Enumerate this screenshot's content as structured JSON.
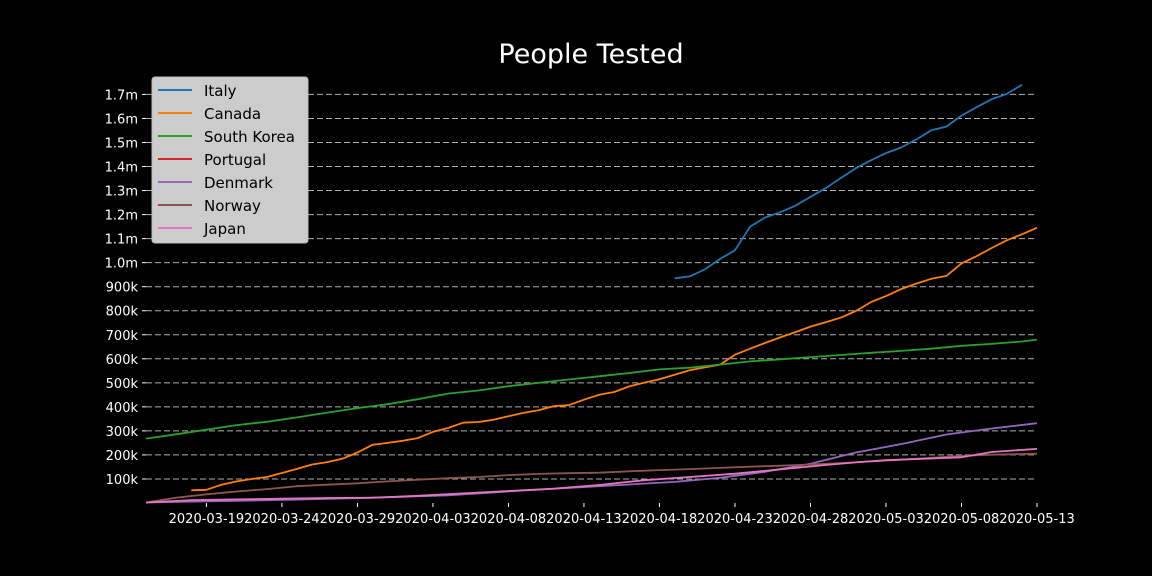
{
  "chart_data": {
    "type": "line",
    "title": "People Tested",
    "xlabel": "",
    "ylabel": "",
    "x_range": [
      "2020-03-15",
      "2020-05-13"
    ],
    "ylim": [
      0,
      1760000
    ],
    "grid": "horizontal dashed",
    "legend_position": "top-left",
    "x_ticks": [
      "2020-03-19",
      "2020-03-24",
      "2020-03-29",
      "2020-04-03",
      "2020-04-08",
      "2020-04-13",
      "2020-04-18",
      "2020-04-23",
      "2020-04-28",
      "2020-05-03",
      "2020-05-08",
      "2020-05-13"
    ],
    "y_ticks": [
      {
        "value": 100000,
        "label": "100k"
      },
      {
        "value": 200000,
        "label": "200k"
      },
      {
        "value": 300000,
        "label": "300k"
      },
      {
        "value": 400000,
        "label": "400k"
      },
      {
        "value": 500000,
        "label": "500k"
      },
      {
        "value": 600000,
        "label": "600k"
      },
      {
        "value": 700000,
        "label": "700k"
      },
      {
        "value": 800000,
        "label": "800k"
      },
      {
        "value": 900000,
        "label": "900k"
      },
      {
        "value": 1000000,
        "label": "1.0m"
      },
      {
        "value": 1100000,
        "label": "1.1m"
      },
      {
        "value": 1200000,
        "label": "1.2m"
      },
      {
        "value": 1300000,
        "label": "1.3m"
      },
      {
        "value": 1400000,
        "label": "1.4m"
      },
      {
        "value": 1500000,
        "label": "1.5m"
      },
      {
        "value": 1600000,
        "label": "1.6m"
      },
      {
        "value": 1700000,
        "label": "1.7m"
      }
    ],
    "series": [
      {
        "name": "Italy",
        "color": "#1f77b4",
        "points": [
          [
            "2020-04-19",
            935000
          ],
          [
            "2020-04-20",
            943000
          ],
          [
            "2020-04-21",
            972000
          ],
          [
            "2020-04-22",
            1015000
          ],
          [
            "2020-04-23",
            1052000
          ],
          [
            "2020-04-24",
            1150000
          ],
          [
            "2020-04-25",
            1188000
          ],
          [
            "2020-04-26",
            1210000
          ],
          [
            "2020-04-27",
            1237000
          ],
          [
            "2020-04-28",
            1274000
          ],
          [
            "2020-04-29",
            1310000
          ],
          [
            "2020-04-30",
            1352000
          ],
          [
            "2020-05-01",
            1393000
          ],
          [
            "2020-05-02",
            1426000
          ],
          [
            "2020-05-03",
            1456000
          ],
          [
            "2020-05-04",
            1479000
          ],
          [
            "2020-05-05",
            1512000
          ],
          [
            "2020-05-06",
            1551000
          ],
          [
            "2020-05-07",
            1566000
          ],
          [
            "2020-05-08",
            1612000
          ],
          [
            "2020-05-09",
            1647000
          ],
          [
            "2020-05-10",
            1680000
          ],
          [
            "2020-05-11",
            1702000
          ],
          [
            "2020-05-12",
            1740000
          ]
        ]
      },
      {
        "name": "Canada",
        "color": "#ff7f0e",
        "points": [
          [
            "2020-03-18",
            53000
          ],
          [
            "2020-03-19",
            55000
          ],
          [
            "2020-03-20",
            76000
          ],
          [
            "2020-03-21",
            90000
          ],
          [
            "2020-03-22",
            100000
          ],
          [
            "2020-03-23",
            108000
          ],
          [
            "2020-03-24",
            125000
          ],
          [
            "2020-03-25",
            142000
          ],
          [
            "2020-03-26",
            160000
          ],
          [
            "2020-03-27",
            170000
          ],
          [
            "2020-03-28",
            184000
          ],
          [
            "2020-03-29",
            210000
          ],
          [
            "2020-03-30",
            242000
          ],
          [
            "2020-03-31",
            250000
          ],
          [
            "2020-04-01",
            259000
          ],
          [
            "2020-04-02",
            270000
          ],
          [
            "2020-04-03",
            296000
          ],
          [
            "2020-04-04",
            312000
          ],
          [
            "2020-04-05",
            334000
          ],
          [
            "2020-04-06",
            337000
          ],
          [
            "2020-04-07",
            346000
          ],
          [
            "2020-04-08",
            361000
          ],
          [
            "2020-04-09",
            375000
          ],
          [
            "2020-04-10",
            386000
          ],
          [
            "2020-04-11",
            403000
          ],
          [
            "2020-04-12",
            407000
          ],
          [
            "2020-04-13",
            430000
          ],
          [
            "2020-04-14",
            450000
          ],
          [
            "2020-04-15",
            462000
          ],
          [
            "2020-04-16",
            485000
          ],
          [
            "2020-04-17",
            501000
          ],
          [
            "2020-04-18",
            515000
          ],
          [
            "2020-04-19",
            534000
          ],
          [
            "2020-04-20",
            552000
          ],
          [
            "2020-04-21",
            564000
          ],
          [
            "2020-04-22",
            575000
          ],
          [
            "2020-04-23",
            617000
          ],
          [
            "2020-04-24",
            642000
          ],
          [
            "2020-04-25",
            666000
          ],
          [
            "2020-04-26",
            689000
          ],
          [
            "2020-04-27",
            711000
          ],
          [
            "2020-04-28",
            734000
          ],
          [
            "2020-04-29",
            752000
          ],
          [
            "2020-04-30",
            771000
          ],
          [
            "2020-05-01",
            799000
          ],
          [
            "2020-05-02",
            836000
          ],
          [
            "2020-05-03",
            861000
          ],
          [
            "2020-05-04",
            890000
          ],
          [
            "2020-05-05",
            913000
          ],
          [
            "2020-05-06",
            933000
          ],
          [
            "2020-05-07",
            945000
          ],
          [
            "2020-05-08",
            997000
          ],
          [
            "2020-05-09",
            1027000
          ],
          [
            "2020-05-10",
            1061000
          ],
          [
            "2020-05-11",
            1093000
          ],
          [
            "2020-05-12",
            1118000
          ],
          [
            "2020-05-13",
            1145000
          ]
        ]
      },
      {
        "name": "South Korea",
        "color": "#2ca02c",
        "points": [
          [
            "2020-03-15",
            268000
          ],
          [
            "2020-03-17",
            286000
          ],
          [
            "2020-03-19",
            305000
          ],
          [
            "2020-03-21",
            324000
          ],
          [
            "2020-03-23",
            338000
          ],
          [
            "2020-03-25",
            356000
          ],
          [
            "2020-03-27",
            376000
          ],
          [
            "2020-03-29",
            395000
          ],
          [
            "2020-03-31",
            411000
          ],
          [
            "2020-04-02",
            432000
          ],
          [
            "2020-04-04",
            455000
          ],
          [
            "2020-04-06",
            468000
          ],
          [
            "2020-04-08",
            486000
          ],
          [
            "2020-04-10",
            500000
          ],
          [
            "2020-04-12",
            514000
          ],
          [
            "2020-04-14",
            527000
          ],
          [
            "2020-04-16",
            541000
          ],
          [
            "2020-04-18",
            556000
          ],
          [
            "2020-04-20",
            563000
          ],
          [
            "2020-04-22",
            576000
          ],
          [
            "2020-04-24",
            589000
          ],
          [
            "2020-04-26",
            598000
          ],
          [
            "2020-04-28",
            607000
          ],
          [
            "2020-04-30",
            616000
          ],
          [
            "2020-05-02",
            625000
          ],
          [
            "2020-05-04",
            633000
          ],
          [
            "2020-05-06",
            642000
          ],
          [
            "2020-05-08",
            654000
          ],
          [
            "2020-05-10",
            662000
          ],
          [
            "2020-05-12",
            672000
          ],
          [
            "2020-05-13",
            680000
          ]
        ]
      },
      {
        "name": "Portugal",
        "color": "#d62728",
        "points": []
      },
      {
        "name": "Denmark",
        "color": "#9467bd",
        "points": [
          [
            "2020-03-15",
            2000
          ],
          [
            "2020-03-20",
            8000
          ],
          [
            "2020-03-25",
            14000
          ],
          [
            "2020-03-30",
            22000
          ],
          [
            "2020-04-04",
            32000
          ],
          [
            "2020-04-09",
            52000
          ],
          [
            "2020-04-14",
            70000
          ],
          [
            "2020-04-19",
            88000
          ],
          [
            "2020-04-22",
            105000
          ],
          [
            "2020-04-25",
            130000
          ],
          [
            "2020-04-28",
            163000
          ],
          [
            "2020-05-01",
            210000
          ],
          [
            "2020-05-04",
            245000
          ],
          [
            "2020-05-07",
            285000
          ],
          [
            "2020-05-10",
            310000
          ],
          [
            "2020-05-13",
            332000
          ]
        ]
      },
      {
        "name": "Norway",
        "color": "#8c564b",
        "points": [
          [
            "2020-03-15",
            2000
          ],
          [
            "2020-03-17",
            22000
          ],
          [
            "2020-03-19",
            36000
          ],
          [
            "2020-03-21",
            48000
          ],
          [
            "2020-03-23",
            58000
          ],
          [
            "2020-03-25",
            70000
          ],
          [
            "2020-03-27",
            76000
          ],
          [
            "2020-03-29",
            82000
          ],
          [
            "2020-03-31",
            90000
          ],
          [
            "2020-04-02",
            97000
          ],
          [
            "2020-04-04",
            103000
          ],
          [
            "2020-04-06",
            108000
          ],
          [
            "2020-04-08",
            116000
          ],
          [
            "2020-04-10",
            121000
          ],
          [
            "2020-04-12",
            124000
          ],
          [
            "2020-04-14",
            126000
          ],
          [
            "2020-04-16",
            132000
          ],
          [
            "2020-04-18",
            137000
          ],
          [
            "2020-04-20",
            141000
          ],
          [
            "2020-04-22",
            146000
          ],
          [
            "2020-04-24",
            151000
          ],
          [
            "2020-04-26",
            155000
          ],
          [
            "2020-04-28",
            160000
          ],
          [
            "2020-04-30",
            166000
          ],
          [
            "2020-05-02",
            173000
          ],
          [
            "2020-05-04",
            180000
          ],
          [
            "2020-05-06",
            188000
          ],
          [
            "2020-05-08",
            196000
          ],
          [
            "2020-05-10",
            201000
          ],
          [
            "2020-05-13",
            205000
          ]
        ]
      },
      {
        "name": "Japan",
        "color": "#e377c2",
        "points": [
          [
            "2020-03-15",
            2000
          ],
          [
            "2020-03-18",
            12000
          ],
          [
            "2020-03-21",
            15000
          ],
          [
            "2020-03-24",
            18000
          ],
          [
            "2020-03-27",
            21000
          ],
          [
            "2020-03-30",
            22000
          ],
          [
            "2020-04-02",
            30000
          ],
          [
            "2020-04-05",
            40000
          ],
          [
            "2020-04-08",
            50000
          ],
          [
            "2020-04-11",
            60000
          ],
          [
            "2020-04-14",
            75000
          ],
          [
            "2020-04-17",
            95000
          ],
          [
            "2020-04-20",
            108000
          ],
          [
            "2020-04-23",
            122000
          ],
          [
            "2020-04-26",
            140000
          ],
          [
            "2020-04-29",
            158000
          ],
          [
            "2020-05-01",
            169000
          ],
          [
            "2020-05-03",
            178000
          ],
          [
            "2020-05-06",
            185000
          ],
          [
            "2020-05-08",
            190000
          ],
          [
            "2020-05-10",
            212000
          ],
          [
            "2020-05-13",
            225000
          ]
        ]
      }
    ]
  }
}
